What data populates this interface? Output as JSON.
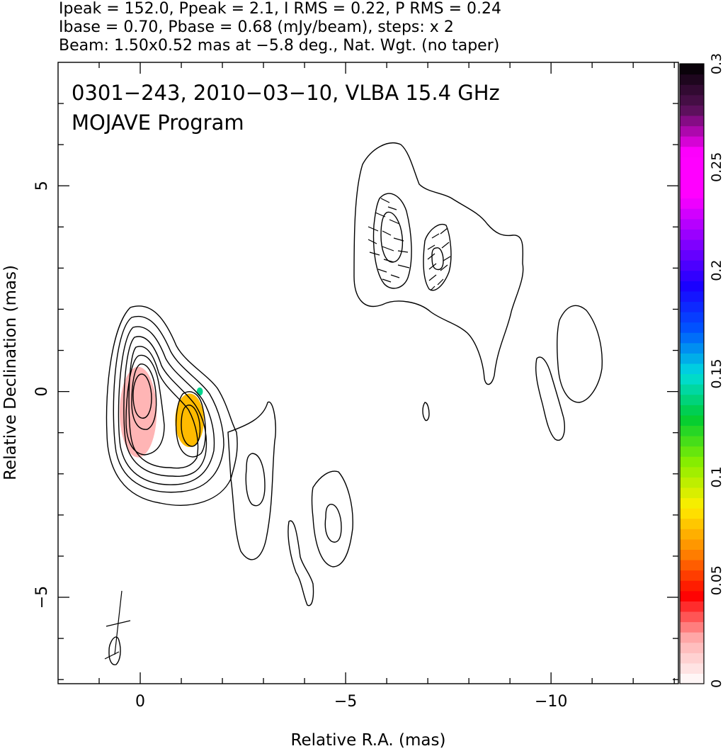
{
  "header": {
    "line1": "Ipeak = 152.0, Ppeak = 2.1, I RMS = 0.22, P RMS = 0.24",
    "line2": "Ibase = 0.70, Pbase = 0.68 (mJy/beam), steps: x 2",
    "line3": "Beam: 1.50x0.52 mas at −5.8 deg., Nat. Wgt. (no taper)"
  },
  "chart_data": {
    "type": "heatmap",
    "title": "0301−243, 2010−03−10, VLBA 15.4 GHz",
    "subtitle": "MOJAVE Program",
    "xlabel": "Relative R.A. (mas)",
    "ylabel": "Relative Declination (mas)",
    "xlim": [
      2.0,
      -13.1
    ],
    "ylim": [
      -7.1,
      8.0
    ],
    "x_ticks": [
      0,
      -5,
      -10
    ],
    "x_tick_labels": [
      "0",
      "−5",
      "−10"
    ],
    "y_ticks": [
      5,
      0,
      -5
    ],
    "y_tick_labels": [
      "5",
      "0",
      "−5"
    ],
    "grid": false,
    "colorbar": {
      "min": 0,
      "max": 0.3,
      "ticks": [
        0,
        0.05,
        0.1,
        0.15,
        0.2,
        0.25,
        0.3
      ],
      "tick_labels": [
        "0",
        "0.05",
        "0.1",
        "0.15",
        "0.2",
        "0.25",
        "0.3"
      ],
      "position": "right",
      "colors": [
        "#ffffff",
        "#ffb0b0",
        "#ff0000",
        "#ff8800",
        "#ffee00",
        "#88ee00",
        "#00cc33",
        "#00dddd",
        "#0055ff",
        "#1a00ff",
        "#8800ff",
        "#ff00ff",
        "#ff00ff",
        "#551155",
        "#000000"
      ]
    },
    "contour_levels_mJy": [
      0.7,
      1.4,
      2.8,
      5.6,
      11.2,
      22.4,
      44.8,
      89.6
    ],
    "polarization_patches": [
      {
        "center": [
          0.05,
          -0.5
        ],
        "size": [
          0.9,
          2.2
        ],
        "fraction": 0.02
      },
      {
        "center": [
          -1.2,
          -0.7
        ],
        "size": [
          0.7,
          1.3
        ],
        "fraction": 0.075
      },
      {
        "center": [
          -1.45,
          0.0
        ],
        "size": [
          0.15,
          0.2
        ],
        "fraction": 0.14
      }
    ],
    "beam": {
      "major_mas": 1.5,
      "minor_mas": 0.52,
      "pa_deg": -5.8
    }
  }
}
